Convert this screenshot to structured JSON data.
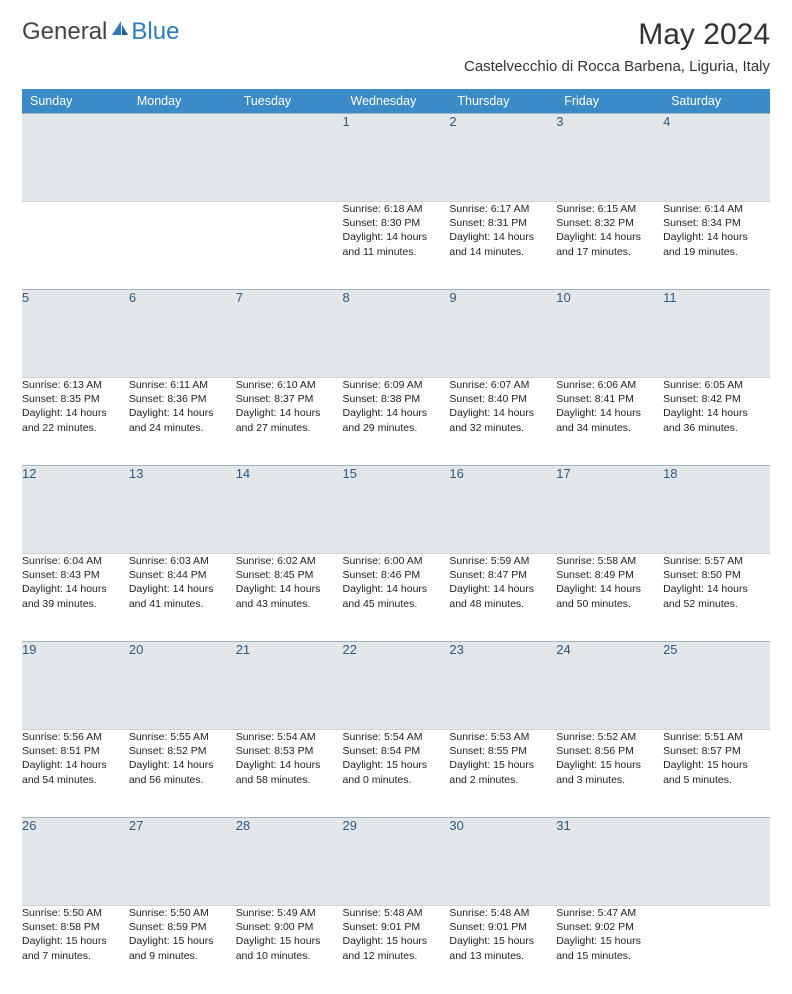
{
  "logo": {
    "part1": "General",
    "part2": "Blue"
  },
  "title": "May 2024",
  "location": "Castelvecchio di Rocca Barbena, Liguria, Italy",
  "colors": {
    "header_bg": "#3b8bc9",
    "header_text": "#ffffff",
    "daynum_bg": "#e3e7ea",
    "daynum_border_top": "#9fb3c2",
    "daynum_text": "#2c5a80",
    "logo_gray": "#444444",
    "logo_blue": "#2b7bbf"
  },
  "day_headers": [
    "Sunday",
    "Monday",
    "Tuesday",
    "Wednesday",
    "Thursday",
    "Friday",
    "Saturday"
  ],
  "weeks": [
    [
      {
        "n": "",
        "lines": []
      },
      {
        "n": "",
        "lines": []
      },
      {
        "n": "",
        "lines": []
      },
      {
        "n": "1",
        "lines": [
          "Sunrise: 6:18 AM",
          "Sunset: 8:30 PM",
          "Daylight: 14 hours",
          "and 11 minutes."
        ]
      },
      {
        "n": "2",
        "lines": [
          "Sunrise: 6:17 AM",
          "Sunset: 8:31 PM",
          "Daylight: 14 hours",
          "and 14 minutes."
        ]
      },
      {
        "n": "3",
        "lines": [
          "Sunrise: 6:15 AM",
          "Sunset: 8:32 PM",
          "Daylight: 14 hours",
          "and 17 minutes."
        ]
      },
      {
        "n": "4",
        "lines": [
          "Sunrise: 6:14 AM",
          "Sunset: 8:34 PM",
          "Daylight: 14 hours",
          "and 19 minutes."
        ]
      }
    ],
    [
      {
        "n": "5",
        "lines": [
          "Sunrise: 6:13 AM",
          "Sunset: 8:35 PM",
          "Daylight: 14 hours",
          "and 22 minutes."
        ]
      },
      {
        "n": "6",
        "lines": [
          "Sunrise: 6:11 AM",
          "Sunset: 8:36 PM",
          "Daylight: 14 hours",
          "and 24 minutes."
        ]
      },
      {
        "n": "7",
        "lines": [
          "Sunrise: 6:10 AM",
          "Sunset: 8:37 PM",
          "Daylight: 14 hours",
          "and 27 minutes."
        ]
      },
      {
        "n": "8",
        "lines": [
          "Sunrise: 6:09 AM",
          "Sunset: 8:38 PM",
          "Daylight: 14 hours",
          "and 29 minutes."
        ]
      },
      {
        "n": "9",
        "lines": [
          "Sunrise: 6:07 AM",
          "Sunset: 8:40 PM",
          "Daylight: 14 hours",
          "and 32 minutes."
        ]
      },
      {
        "n": "10",
        "lines": [
          "Sunrise: 6:06 AM",
          "Sunset: 8:41 PM",
          "Daylight: 14 hours",
          "and 34 minutes."
        ]
      },
      {
        "n": "11",
        "lines": [
          "Sunrise: 6:05 AM",
          "Sunset: 8:42 PM",
          "Daylight: 14 hours",
          "and 36 minutes."
        ]
      }
    ],
    [
      {
        "n": "12",
        "lines": [
          "Sunrise: 6:04 AM",
          "Sunset: 8:43 PM",
          "Daylight: 14 hours",
          "and 39 minutes."
        ]
      },
      {
        "n": "13",
        "lines": [
          "Sunrise: 6:03 AM",
          "Sunset: 8:44 PM",
          "Daylight: 14 hours",
          "and 41 minutes."
        ]
      },
      {
        "n": "14",
        "lines": [
          "Sunrise: 6:02 AM",
          "Sunset: 8:45 PM",
          "Daylight: 14 hours",
          "and 43 minutes."
        ]
      },
      {
        "n": "15",
        "lines": [
          "Sunrise: 6:00 AM",
          "Sunset: 8:46 PM",
          "Daylight: 14 hours",
          "and 45 minutes."
        ]
      },
      {
        "n": "16",
        "lines": [
          "Sunrise: 5:59 AM",
          "Sunset: 8:47 PM",
          "Daylight: 14 hours",
          "and 48 minutes."
        ]
      },
      {
        "n": "17",
        "lines": [
          "Sunrise: 5:58 AM",
          "Sunset: 8:49 PM",
          "Daylight: 14 hours",
          "and 50 minutes."
        ]
      },
      {
        "n": "18",
        "lines": [
          "Sunrise: 5:57 AM",
          "Sunset: 8:50 PM",
          "Daylight: 14 hours",
          "and 52 minutes."
        ]
      }
    ],
    [
      {
        "n": "19",
        "lines": [
          "Sunrise: 5:56 AM",
          "Sunset: 8:51 PM",
          "Daylight: 14 hours",
          "and 54 minutes."
        ]
      },
      {
        "n": "20",
        "lines": [
          "Sunrise: 5:55 AM",
          "Sunset: 8:52 PM",
          "Daylight: 14 hours",
          "and 56 minutes."
        ]
      },
      {
        "n": "21",
        "lines": [
          "Sunrise: 5:54 AM",
          "Sunset: 8:53 PM",
          "Daylight: 14 hours",
          "and 58 minutes."
        ]
      },
      {
        "n": "22",
        "lines": [
          "Sunrise: 5:54 AM",
          "Sunset: 8:54 PM",
          "Daylight: 15 hours",
          "and 0 minutes."
        ]
      },
      {
        "n": "23",
        "lines": [
          "Sunrise: 5:53 AM",
          "Sunset: 8:55 PM",
          "Daylight: 15 hours",
          "and 2 minutes."
        ]
      },
      {
        "n": "24",
        "lines": [
          "Sunrise: 5:52 AM",
          "Sunset: 8:56 PM",
          "Daylight: 15 hours",
          "and 3 minutes."
        ]
      },
      {
        "n": "25",
        "lines": [
          "Sunrise: 5:51 AM",
          "Sunset: 8:57 PM",
          "Daylight: 15 hours",
          "and 5 minutes."
        ]
      }
    ],
    [
      {
        "n": "26",
        "lines": [
          "Sunrise: 5:50 AM",
          "Sunset: 8:58 PM",
          "Daylight: 15 hours",
          "and 7 minutes."
        ]
      },
      {
        "n": "27",
        "lines": [
          "Sunrise: 5:50 AM",
          "Sunset: 8:59 PM",
          "Daylight: 15 hours",
          "and 9 minutes."
        ]
      },
      {
        "n": "28",
        "lines": [
          "Sunrise: 5:49 AM",
          "Sunset: 9:00 PM",
          "Daylight: 15 hours",
          "and 10 minutes."
        ]
      },
      {
        "n": "29",
        "lines": [
          "Sunrise: 5:48 AM",
          "Sunset: 9:01 PM",
          "Daylight: 15 hours",
          "and 12 minutes."
        ]
      },
      {
        "n": "30",
        "lines": [
          "Sunrise: 5:48 AM",
          "Sunset: 9:01 PM",
          "Daylight: 15 hours",
          "and 13 minutes."
        ]
      },
      {
        "n": "31",
        "lines": [
          "Sunrise: 5:47 AM",
          "Sunset: 9:02 PM",
          "Daylight: 15 hours",
          "and 15 minutes."
        ]
      },
      {
        "n": "",
        "lines": []
      }
    ]
  ]
}
